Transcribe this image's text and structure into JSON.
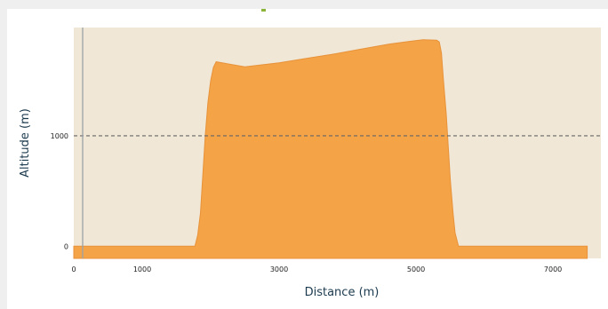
{
  "colors": {
    "plot_background": "#f0e7d6",
    "area_fill": "#f4a347",
    "area_stroke": "#e8923a",
    "reference_line": "#666666",
    "axis_line": "#9aa3a8",
    "axis_title": "#1c3a4e"
  },
  "chart_data": {
    "type": "area",
    "title": "",
    "xlabel": "Distance (m)",
    "ylabel": "Altitude (m)",
    "xlim": [
      0,
      7700
    ],
    "ylim": [
      -110,
      1980
    ],
    "x_ticks": [
      0,
      1000,
      3000,
      5000,
      7000
    ],
    "y_ticks": [
      0,
      1000
    ],
    "grid": false,
    "reference_lines": [
      {
        "axis": "y",
        "value": 1000,
        "style": "dashed"
      }
    ],
    "series": [
      {
        "x": [
          0,
          1200,
          1770,
          1810,
          1850,
          1890,
          1920,
          1960,
          2000,
          2040,
          2080,
          2500,
          3000,
          3400,
          3800,
          4200,
          4600,
          4900,
          5100,
          5300,
          5340,
          5370,
          5400,
          5440,
          5470,
          5500,
          5540,
          5570,
          5620,
          6500,
          7500
        ],
        "y": [
          0,
          0,
          0,
          100,
          300,
          700,
          1000,
          1300,
          1500,
          1620,
          1670,
          1625,
          1660,
          1700,
          1740,
          1785,
          1830,
          1855,
          1870,
          1865,
          1850,
          1750,
          1500,
          1200,
          900,
          600,
          300,
          120,
          0,
          0,
          0
        ]
      }
    ]
  }
}
